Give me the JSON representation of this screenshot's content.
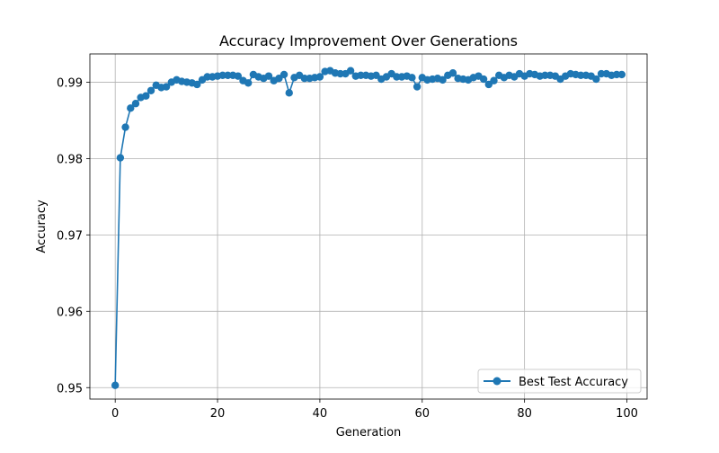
{
  "chart_data": {
    "type": "line",
    "title": "Accuracy Improvement Over Generations",
    "xlabel": "Generation",
    "ylabel": "Accuracy",
    "xlim": [
      -4.95,
      103.95
    ],
    "ylim": [
      0.9485,
      0.9937
    ],
    "xticks": [
      0,
      20,
      40,
      60,
      80,
      100
    ],
    "yticks": [
      0.95,
      0.96,
      0.97,
      0.98,
      0.99
    ],
    "xtick_labels": [
      "0",
      "20",
      "40",
      "60",
      "80",
      "100"
    ],
    "ytick_labels": [
      "0.95",
      "0.96",
      "0.97",
      "0.98",
      "0.99"
    ],
    "grid": true,
    "legend_position": "lower-right",
    "series": [
      {
        "name": "Best Test Accuracy",
        "color": "#1f77b4",
        "marker": "circle",
        "x": [
          0,
          1,
          2,
          3,
          4,
          5,
          6,
          7,
          8,
          9,
          10,
          11,
          12,
          13,
          14,
          15,
          16,
          17,
          18,
          19,
          20,
          21,
          22,
          23,
          24,
          25,
          26,
          27,
          28,
          29,
          30,
          31,
          32,
          33,
          34,
          35,
          36,
          37,
          38,
          39,
          40,
          41,
          42,
          43,
          44,
          45,
          46,
          47,
          48,
          49,
          50,
          51,
          52,
          53,
          54,
          55,
          56,
          57,
          58,
          59,
          60,
          61,
          62,
          63,
          64,
          65,
          66,
          67,
          68,
          69,
          70,
          71,
          72,
          73,
          74,
          75,
          76,
          77,
          78,
          79,
          80,
          81,
          82,
          83,
          84,
          85,
          86,
          87,
          88,
          89,
          90,
          91,
          92,
          93,
          94,
          95,
          96,
          97,
          98,
          99
        ],
        "values": [
          0.9503,
          0.9801,
          0.9841,
          0.9866,
          0.9872,
          0.988,
          0.9882,
          0.9889,
          0.9896,
          0.9893,
          0.9894,
          0.99,
          0.9903,
          0.9901,
          0.99,
          0.9899,
          0.9897,
          0.9903,
          0.9907,
          0.9907,
          0.9908,
          0.9909,
          0.9909,
          0.9909,
          0.9908,
          0.9902,
          0.9899,
          0.991,
          0.9907,
          0.9905,
          0.9908,
          0.9902,
          0.9905,
          0.991,
          0.9886,
          0.9906,
          0.9909,
          0.9905,
          0.9905,
          0.9906,
          0.9907,
          0.9914,
          0.9915,
          0.9912,
          0.9911,
          0.9911,
          0.9915,
          0.9908,
          0.9909,
          0.9909,
          0.9908,
          0.9909,
          0.9904,
          0.9907,
          0.9911,
          0.9907,
          0.9907,
          0.9908,
          0.9906,
          0.9894,
          0.9906,
          0.9903,
          0.9904,
          0.9905,
          0.9903,
          0.9909,
          0.9912,
          0.9905,
          0.9904,
          0.9903,
          0.9906,
          0.9908,
          0.9904,
          0.9897,
          0.9902,
          0.9909,
          0.9906,
          0.9909,
          0.9907,
          0.9911,
          0.9908,
          0.9911,
          0.991,
          0.9908,
          0.9909,
          0.9909,
          0.9908,
          0.9904,
          0.9908,
          0.9911,
          0.991,
          0.9909,
          0.9909,
          0.9908,
          0.9904,
          0.9911,
          0.9911,
          0.9909,
          0.991,
          0.991
        ]
      }
    ]
  }
}
